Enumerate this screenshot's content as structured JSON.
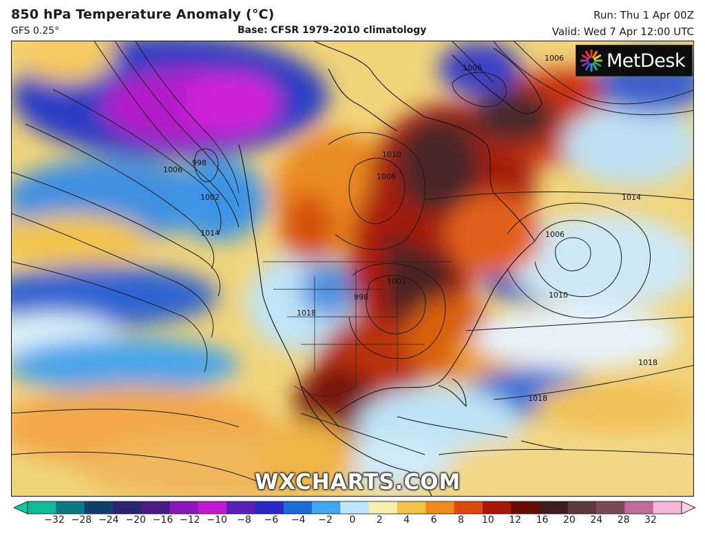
{
  "header": {
    "title": "850 hPa Temperature Anomaly (°C)",
    "model": "GFS 0.25°",
    "base": "Base: CFSR 1979-2010 climatology",
    "run": "Run: Thu 1 Apr 00Z",
    "valid": "Valid: Wed 7 Apr 12:00 UTC"
  },
  "logo": {
    "text": "MetDesk",
    "icon": "metdesk-burst-icon"
  },
  "watermark": "WXCHARTS.COM",
  "isobar_labels": [
    "1006",
    "1006",
    "998",
    "1006",
    "1002",
    "1014",
    "1014",
    "1006",
    "1010",
    "1018",
    "1018",
    "1018",
    "1010",
    "1006",
    "1002",
    "998"
  ],
  "colorbar": {
    "ticks": [
      "−32",
      "−28",
      "−24",
      "−20",
      "−16",
      "−12",
      "−10",
      "−8",
      "−6",
      "−4",
      "−2",
      "0",
      "2",
      "4",
      "6",
      "8",
      "10",
      "12",
      "16",
      "20",
      "24",
      "28",
      "32"
    ],
    "colors": [
      "#0fb99a",
      "#0c7a85",
      "#12406a",
      "#2b2470",
      "#4a1a86",
      "#8b18b8",
      "#c21ad0",
      "#5a1fb8",
      "#2828c8",
      "#1c6ad8",
      "#3fa8ee",
      "#bde6f8",
      "#f6f0b0",
      "#f2c24a",
      "#ee8c1a",
      "#dd4a10",
      "#a81808",
      "#6a0c06",
      "#3e1f1f",
      "#5c3a3a",
      "#7a4a58",
      "#c46a9a",
      "#f3b8d8"
    ]
  }
}
